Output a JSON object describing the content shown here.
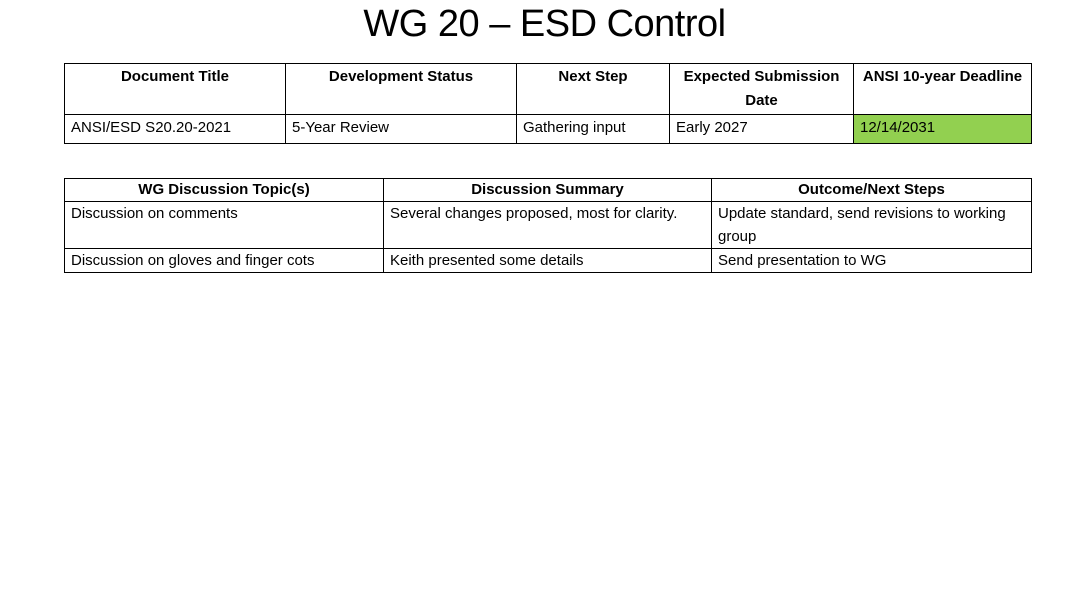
{
  "slide": {
    "title": "WG 20 – ESD Control"
  },
  "status_table": {
    "headers": [
      "Document Title",
      "Development Status",
      "Next Step",
      "Expected Submission Date",
      "ANSI 10-year Deadline"
    ],
    "rows": [
      [
        "ANSI/ESD S20.20-2021",
        "5-Year Review",
        "Gathering input",
        "Early 2027",
        "12/14/2031"
      ]
    ],
    "highlight_color": "#92d050"
  },
  "discussion_table": {
    "headers": [
      "WG Discussion Topic(s)",
      "Discussion Summary",
      "Outcome/Next Steps"
    ],
    "rows": [
      [
        "Discussion on comments",
        "Several changes proposed, most for clarity.",
        "Update standard, send revisions to working group"
      ],
      [
        "Discussion on gloves and finger cots",
        "Keith presented some details",
        "Send presentation to WG"
      ]
    ]
  }
}
